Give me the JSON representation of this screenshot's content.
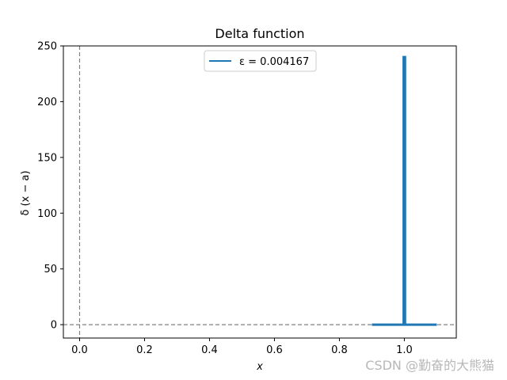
{
  "chart_data": {
    "type": "line",
    "title": "Delta function",
    "xlabel": "x",
    "ylabel": "δ (x − a)",
    "xlim": [
      -0.05,
      1.16
    ],
    "ylim": [
      -12,
      250
    ],
    "xticks": [
      0.0,
      0.2,
      0.4,
      0.6,
      0.8,
      1.0
    ],
    "xtick_labels": [
      "0.0",
      "0.2",
      "0.4",
      "0.6",
      "0.8",
      "1.0"
    ],
    "yticks": [
      0,
      50,
      100,
      150,
      200,
      250
    ],
    "ytick_labels": [
      "0",
      "50",
      "100",
      "150",
      "200",
      "250"
    ],
    "grid": false,
    "legend": "upper center",
    "series": [
      {
        "name": "ε = 0.004167",
        "color": "#1f77b4",
        "x": [
          0.9,
          0.997917,
          0.997917,
          1.002083,
          1.002083,
          1.1
        ],
        "y": [
          0,
          0,
          240,
          240,
          0,
          0
        ]
      }
    ],
    "reference_lines": [
      {
        "orientation": "vertical",
        "value": 0,
        "style": "dashed",
        "color": "#808080"
      },
      {
        "orientation": "horizontal",
        "value": 0,
        "style": "dashed",
        "color": "#808080"
      }
    ]
  },
  "watermark": {
    "text": "CSDN @勤奋的大熊猫"
  }
}
